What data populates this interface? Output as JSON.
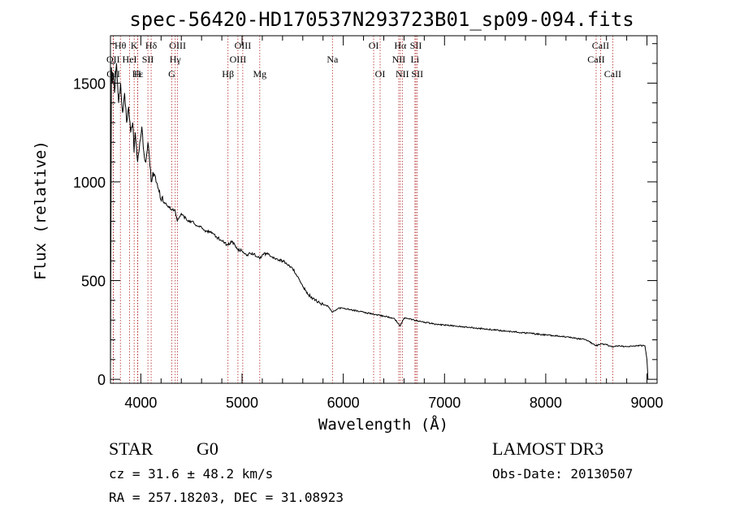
{
  "chart_data": {
    "type": "line",
    "title": "spec-56420-HD170537N293723B01_sp09-094.fits",
    "xlabel": "Wavelength (Å)",
    "ylabel": "Flux (relative)",
    "xlim": [
      3700,
      9100
    ],
    "ylim": [
      -20,
      1740
    ],
    "x_ticks": [
      4000,
      5000,
      6000,
      7000,
      8000,
      9000
    ],
    "x_tick_labels": [
      "4000",
      "5000",
      "6000",
      "7000",
      "8000",
      "9000"
    ],
    "y_ticks": [
      0,
      500,
      1000,
      1500
    ],
    "y_tick_labels": [
      "0",
      "500",
      "1000",
      "1500"
    ],
    "series": [
      {
        "name": "spectrum",
        "x": [
          3700,
          3710,
          3720,
          3730,
          3740,
          3760,
          3780,
          3800,
          3820,
          3840,
          3860,
          3880,
          3900,
          3920,
          3933,
          3945,
          3968,
          3990,
          4010,
          4030,
          4050,
          4070,
          4090,
          4102,
          4120,
          4150,
          4180,
          4220,
          4260,
          4300,
          4340,
          4360,
          4400,
          4450,
          4500,
          4550,
          4600,
          4650,
          4700,
          4750,
          4800,
          4861,
          4900,
          4950,
          5000,
          5050,
          5100,
          5150,
          5175,
          5200,
          5250,
          5300,
          5350,
          5400,
          5450,
          5500,
          5550,
          5600,
          5650,
          5700,
          5750,
          5800,
          5850,
          5893,
          5950,
          6000,
          6100,
          6200,
          6300,
          6400,
          6500,
          6563,
          6600,
          6700,
          6800,
          6900,
          7000,
          7200,
          7400,
          7600,
          7800,
          8000,
          8200,
          8400,
          8498,
          8542,
          8600,
          8662,
          8700,
          8800,
          8900,
          8980,
          9000,
          9010
        ],
        "y": [
          20,
          1580,
          1500,
          1550,
          1450,
          1600,
          1400,
          1500,
          1350,
          1450,
          1300,
          1380,
          1250,
          1300,
          1150,
          1250,
          1100,
          1200,
          1280,
          1150,
          1100,
          1200,
          1080,
          1000,
          1050,
          1000,
          950,
          900,
          880,
          860,
          850,
          800,
          840,
          810,
          800,
          780,
          770,
          750,
          740,
          720,
          700,
          680,
          700,
          660,
          650,
          630,
          640,
          620,
          610,
          630,
          640,
          620,
          610,
          600,
          580,
          560,
          520,
          470,
          430,
          410,
          390,
          380,
          370,
          340,
          360,
          360,
          350,
          340,
          330,
          320,
          310,
          270,
          310,
          300,
          290,
          280,
          275,
          265,
          255,
          245,
          235,
          225,
          215,
          200,
          170,
          180,
          175,
          165,
          170,
          165,
          170,
          170,
          100,
          0
        ]
      }
    ],
    "spectral_lines": [
      {
        "label": "Hθ",
        "x": 3798,
        "row": 0
      },
      {
        "label": "K",
        "x": 3934,
        "row": 0
      },
      {
        "label": "Hδ",
        "x": 4102,
        "row": 0
      },
      {
        "label": "OIII",
        "x": 4363,
        "row": 0
      },
      {
        "label": "OIII",
        "x": 5007,
        "row": 0
      },
      {
        "label": "OI",
        "x": 6300,
        "row": 0
      },
      {
        "label": "Hα",
        "x": 6563,
        "row": 0
      },
      {
        "label": "SII",
        "x": 6717,
        "row": 0
      },
      {
        "label": "CaII",
        "x": 8542,
        "row": 0
      },
      {
        "label": "OII",
        "x": 3727,
        "row": 1
      },
      {
        "label": "HeI",
        "x": 3889,
        "row": 1
      },
      {
        "label": "SII",
        "x": 4070,
        "row": 1
      },
      {
        "label": "Hγ",
        "x": 4340,
        "row": 1
      },
      {
        "label": "OIII",
        "x": 4959,
        "row": 1
      },
      {
        "label": "Na",
        "x": 5893,
        "row": 1
      },
      {
        "label": "NII",
        "x": 6548,
        "row": 1
      },
      {
        "label": "Li",
        "x": 6708,
        "row": 1
      },
      {
        "label": "CaII",
        "x": 8498,
        "row": 1
      },
      {
        "label": "OII",
        "x": 3729,
        "row": 2
      },
      {
        "label": "Hε",
        "x": 3970,
        "row": 2
      },
      {
        "label": "H",
        "x": 3968,
        "row": 2
      },
      {
        "label": "G",
        "x": 4305,
        "row": 2
      },
      {
        "label": "Hβ",
        "x": 4861,
        "row": 2
      },
      {
        "label": "Mg",
        "x": 5175,
        "row": 2
      },
      {
        "label": "OI",
        "x": 6364,
        "row": 2
      },
      {
        "label": "NII",
        "x": 6583,
        "row": 2
      },
      {
        "label": "SII",
        "x": 6731,
        "row": 2
      },
      {
        "label": "CaII",
        "x": 8662,
        "row": 2
      }
    ]
  },
  "info": {
    "class": "STAR",
    "subclass": "G0",
    "survey": "LAMOST DR3",
    "cz": "cz = 31.6 ± 48.2 km/s",
    "obs_date": "Obs-Date: 20130507",
    "radec": "RA = 257.18203, DEC =  31.08923"
  },
  "colors": {
    "line_marker": "#b22222",
    "spectrum": "#000000"
  }
}
